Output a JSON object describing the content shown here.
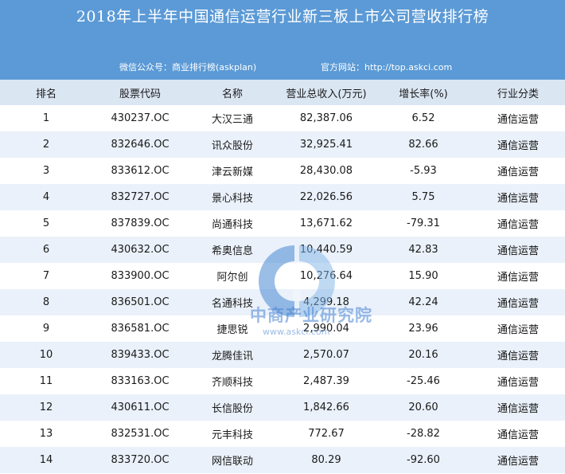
{
  "title": "2018年上半年中国通信运营行业新三板上市公司营收排行榜",
  "subtitle_left": "微信公众号：商业排行榜(askplan)",
  "subtitle_right": "官方网站：http://top.askci.com",
  "columns": [
    "排名",
    "股票代码",
    "名称",
    "营业总收入(万元)",
    "增长率(%)",
    "行业分类"
  ],
  "rows": [
    {
      "rank": "1",
      "code": "430237.OC",
      "name": "大汉三通",
      "revenue": "82,387.06",
      "growth": "6.52",
      "sector": "通信运营"
    },
    {
      "rank": "2",
      "code": "832646.OC",
      "name": "讯众股份",
      "revenue": "32,925.41",
      "growth": "82.66",
      "sector": "通信运营"
    },
    {
      "rank": "3",
      "code": "833612.OC",
      "name": "津云新媒",
      "revenue": "28,430.08",
      "growth": "-5.93",
      "sector": "通信运营"
    },
    {
      "rank": "4",
      "code": "832727.OC",
      "name": "景心科技",
      "revenue": "22,026.56",
      "growth": "5.75",
      "sector": "通信运营"
    },
    {
      "rank": "5",
      "code": "837839.OC",
      "name": "尚通科技",
      "revenue": "13,671.62",
      "growth": "-79.31",
      "sector": "通信运营"
    },
    {
      "rank": "6",
      "code": "430632.OC",
      "name": "希奥信息",
      "revenue": "10,440.59",
      "growth": "42.83",
      "sector": "通信运营"
    },
    {
      "rank": "7",
      "code": "833900.OC",
      "name": "阿尔创",
      "revenue": "10,276.64",
      "growth": "15.90",
      "sector": "通信运营"
    },
    {
      "rank": "8",
      "code": "836501.OC",
      "name": "名通科技",
      "revenue": "4,299.18",
      "growth": "42.24",
      "sector": "通信运营"
    },
    {
      "rank": "9",
      "code": "836581.OC",
      "name": "捷思锐",
      "revenue": "2,990.04",
      "growth": "23.96",
      "sector": "通信运营"
    },
    {
      "rank": "10",
      "code": "839433.OC",
      "name": "龙腾佳讯",
      "revenue": "2,570.07",
      "growth": "20.16",
      "sector": "通信运营"
    },
    {
      "rank": "11",
      "code": "833163.OC",
      "name": "齐顺科技",
      "revenue": "2,487.39",
      "growth": "-25.46",
      "sector": "通信运营"
    },
    {
      "rank": "12",
      "code": "430611.OC",
      "name": "长信股份",
      "revenue": "1,842.66",
      "growth": "20.60",
      "sector": "通信运营"
    },
    {
      "rank": "13",
      "code": "832531.OC",
      "name": "元丰科技",
      "revenue": "772.67",
      "growth": "-28.82",
      "sector": "通信运营"
    },
    {
      "rank": "14",
      "code": "833720.OC",
      "name": "网信联动",
      "revenue": "80.29",
      "growth": "-92.60",
      "sector": "通信运营"
    }
  ],
  "watermark": {
    "text": "中商产业研究院",
    "url": "www.askci.com"
  },
  "colors": {
    "header_bg": "#5b9ad6",
    "column_header_bg": "#dbe6f3",
    "alt_row_bg": "#eaf1fa"
  }
}
